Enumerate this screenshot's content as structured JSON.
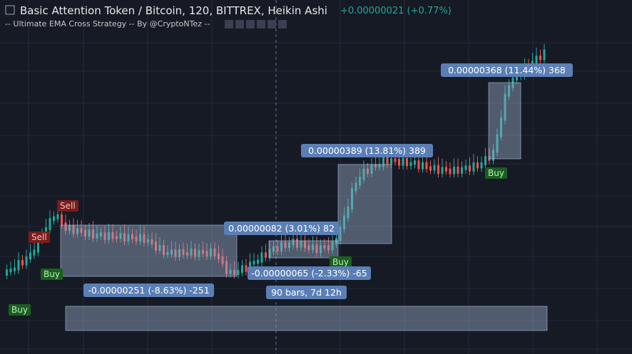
{
  "header": {
    "title": "Basic Attention Token / Bitcoin, 120, BITTREX, Heikin Ashi",
    "change": "+0.00000021 (+0.77%)"
  },
  "indicator": "-- Ultimate EMA Cross Strategy -- By @CryptoNTez --",
  "signals": [
    "Sell",
    "Sell",
    "Buy",
    "Buy",
    "Buy",
    "Buy"
  ],
  "measurements": [
    "0.00000368 (11.44%) 368",
    "0.00000389 (13.81%) 389",
    "0.00000082 (3.01%) 82",
    "-0.00000251 (-8.63%) -251",
    "-0.00000065 (-2.33%) -65",
    "90 bars, 7d 12h"
  ]
}
